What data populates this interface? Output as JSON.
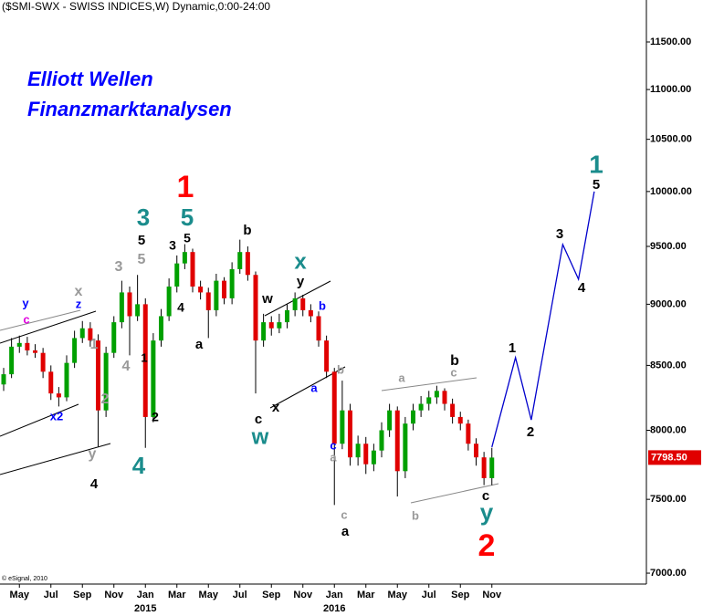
{
  "chart_data": {
    "type": "candlestick",
    "title": "($SMI-SWX - SWISS INDICES,W) Dynamic,0:00-24:00",
    "subtitle_lines": [
      "Elliott Wellen",
      "Finanzmarktanalysen"
    ],
    "credit": "© eSignal, 2010",
    "log_scale": true,
    "grid": false,
    "up_color": "#00a000",
    "down_color": "#e00000",
    "wick_color": "#000000",
    "categories": [
      null,
      null,
      "May",
      null,
      null,
      null,
      "Jul",
      null,
      null,
      null,
      "Sep",
      null,
      null,
      null,
      "Nov",
      null,
      null,
      null,
      "Jan\n2015",
      null,
      null,
      null,
      "Mar",
      null,
      null,
      null,
      "May",
      null,
      null,
      null,
      "Jul",
      null,
      null,
      null,
      "Sep",
      null,
      null,
      null,
      "Nov",
      null,
      null,
      null,
      "Jan\n2016",
      null,
      null,
      null,
      "Mar",
      null,
      null,
      null,
      "May",
      null,
      null,
      null,
      "Jul",
      null,
      null,
      null,
      "Sep",
      null,
      null,
      null,
      "Nov",
      null,
      null,
      null,
      null,
      null,
      null,
      null,
      null,
      null,
      null,
      null,
      null,
      null,
      null
    ],
    "candles": {
      "open": [
        8350,
        8430,
        8650,
        8680,
        8620,
        8600,
        8450,
        8280,
        8250,
        8520,
        8720,
        8800,
        8700,
        8150,
        8600,
        8850,
        9100,
        8900,
        9000,
        8100,
        8700,
        8900,
        9150,
        9350,
        9450,
        9150,
        9100,
        8950,
        9200,
        9050,
        9300,
        9450,
        9250,
        8700,
        8850,
        8800,
        8850,
        8950,
        9050,
        8950,
        8900,
        8700,
        8450,
        7900,
        8150,
        7800,
        7900,
        7750,
        7850,
        8000,
        8150,
        7700,
        8050,
        8150,
        8200,
        8250,
        8300,
        8200,
        8100,
        8050,
        7900,
        7800,
        7650,
        null,
        null,
        null,
        null,
        null,
        null,
        null,
        null,
        null,
        null,
        null,
        null,
        null,
        null
      ],
      "high": [
        8480,
        8720,
        8740,
        8730,
        8670,
        8640,
        8500,
        8330,
        8580,
        8780,
        8860,
        8850,
        8750,
        8650,
        8900,
        9200,
        9150,
        9250,
        9050,
        8760,
        8960,
        9220,
        9420,
        9520,
        9480,
        9200,
        9140,
        9260,
        9230,
        9360,
        9560,
        9500,
        9280,
        8920,
        8900,
        8920,
        9000,
        9100,
        9080,
        9000,
        8940,
        8740,
        8480,
        8380,
        8200,
        7960,
        7950,
        7900,
        8060,
        8200,
        8180,
        8100,
        8200,
        8260,
        8300,
        8340,
        8320,
        8240,
        8140,
        8080,
        7940,
        7840,
        7870,
        null,
        null,
        null,
        null,
        null,
        null,
        null,
        null,
        null,
        null,
        null,
        null,
        null,
        null
      ],
      "low": [
        8300,
        8400,
        8600,
        8580,
        8560,
        8400,
        8230,
        8180,
        8220,
        8480,
        8680,
        8650,
        7880,
        8100,
        8560,
        8800,
        8580,
        8860,
        7870,
        8060,
        8650,
        8860,
        9100,
        9300,
        9100,
        9040,
        8720,
        8900,
        9000,
        9000,
        9260,
        9200,
        8280,
        8650,
        8740,
        8760,
        8800,
        8900,
        8900,
        8850,
        8650,
        8400,
        7460,
        7860,
        7740,
        7740,
        7680,
        7700,
        7800,
        7950,
        7520,
        7650,
        8000,
        8100,
        8150,
        8200,
        8150,
        8050,
        8000,
        7850,
        7740,
        7600,
        7600,
        null,
        null,
        null,
        null,
        null,
        null,
        null,
        null,
        null,
        null,
        null,
        null,
        null,
        null
      ],
      "close": [
        8430,
        8650,
        8680,
        8620,
        8600,
        8450,
        8280,
        8250,
        8520,
        8720,
        8800,
        8700,
        8150,
        8600,
        8850,
        9100,
        8900,
        9000,
        8100,
        8700,
        8900,
        9150,
        9350,
        9450,
        9150,
        9100,
        8950,
        9200,
        9050,
        9300,
        9450,
        9250,
        8700,
        8850,
        8800,
        8850,
        8950,
        9050,
        8950,
        8900,
        8700,
        8450,
        7900,
        8150,
        7800,
        7900,
        7750,
        7850,
        8000,
        8150,
        7700,
        8050,
        8150,
        8200,
        8250,
        8300,
        8200,
        8100,
        8050,
        7900,
        7800,
        7650,
        7798.5,
        null,
        null,
        null,
        null,
        null,
        null,
        null,
        null,
        null,
        null,
        null,
        null,
        null,
        null
      ],
      "last_value_label": "7798.50",
      "last_label_color": "#e00000"
    },
    "projection": {
      "color": "#0000cc",
      "values": [
        null,
        null,
        null,
        null,
        null,
        null,
        null,
        null,
        null,
        null,
        null,
        null,
        null,
        null,
        null,
        null,
        null,
        null,
        null,
        null,
        null,
        null,
        null,
        null,
        null,
        null,
        null,
        null,
        null,
        null,
        null,
        null,
        null,
        null,
        null,
        null,
        null,
        null,
        null,
        null,
        null,
        null,
        null,
        null,
        null,
        null,
        null,
        null,
        null,
        null,
        null,
        null,
        null,
        null,
        null,
        null,
        null,
        null,
        null,
        null,
        null,
        null,
        7875,
        8098,
        8326,
        8562,
        8317,
        8078,
        8417,
        8769,
        9135,
        9517,
        9364,
        9213,
        9598,
        10000,
        null
      ]
    },
    "ylim": [
      6929,
      11960
    ],
    "yticks": [
      {
        "value": 7000,
        "label": "7000.00"
      },
      {
        "value": 7500,
        "label": "7500.00"
      },
      {
        "value": 8000,
        "label": "8000.00"
      },
      {
        "value": 8500,
        "label": "8500.00"
      },
      {
        "value": 9000,
        "label": "9000.00"
      },
      {
        "value": 9500,
        "label": "9500.00"
      },
      {
        "value": 10000,
        "label": "10000.00"
      },
      {
        "value": 10500,
        "label": "10500.00"
      },
      {
        "value": 11000,
        "label": "11000.00"
      },
      {
        "value": 11500,
        "label": "11500.00"
      }
    ],
    "annotations": [
      {
        "text": "1",
        "color": "#ff0000"
      },
      {
        "text": "2",
        "color": "#ff0000"
      },
      {
        "text": "3",
        "color": "#1a8c8c"
      },
      {
        "text": "5",
        "color": "#1a8c8c"
      },
      {
        "text": "4",
        "color": "#1a8c8c"
      },
      {
        "text": "1",
        "color": "#1a8c8c"
      },
      {
        "text": "x",
        "color": "#1a8c8c"
      },
      {
        "text": "w",
        "color": "#1a8c8c"
      },
      {
        "text": "y",
        "color": "#1a8c8c"
      },
      {
        "text": "5",
        "color": "#000000"
      },
      {
        "text": "3",
        "color": "#000000"
      },
      {
        "text": "5",
        "color": "#000000"
      },
      {
        "text": "b",
        "color": "#000000"
      },
      {
        "text": "4",
        "color": "#000000"
      },
      {
        "text": "a",
        "color": "#000000"
      },
      {
        "text": "w",
        "color": "#000000"
      },
      {
        "text": "y",
        "color": "#000000"
      },
      {
        "text": "c",
        "color": "#000000"
      },
      {
        "text": "x",
        "color": "#000000"
      },
      {
        "text": "a",
        "color": "#000000"
      },
      {
        "text": "b",
        "color": "#000000"
      },
      {
        "text": "c",
        "color": "#000000"
      },
      {
        "text": "4",
        "color": "#000000"
      },
      {
        "text": "2",
        "color": "#000000"
      },
      {
        "text": "1",
        "color": "#000000"
      },
      {
        "text": "1",
        "color": "#000000"
      },
      {
        "text": "2",
        "color": "#000000"
      },
      {
        "text": "3",
        "color": "#000000"
      },
      {
        "text": "4",
        "color": "#000000"
      },
      {
        "text": "5",
        "color": "#000000"
      },
      {
        "text": "3",
        "color": "#999999"
      },
      {
        "text": "5",
        "color": "#999999"
      },
      {
        "text": "4",
        "color": "#999999"
      },
      {
        "text": "2",
        "color": "#999999"
      },
      {
        "text": "1",
        "color": "#999999"
      },
      {
        "text": "x",
        "color": "#999999"
      },
      {
        "text": "y",
        "color": "#999999"
      },
      {
        "text": "b",
        "color": "#999999"
      },
      {
        "text": "a",
        "color": "#999999"
      },
      {
        "text": "c",
        "color": "#999999"
      },
      {
        "text": "a",
        "color": "#999999"
      },
      {
        "text": "c",
        "color": "#999999"
      },
      {
        "text": "b",
        "color": "#999999"
      },
      {
        "text": "y",
        "color": "#0000ff"
      },
      {
        "text": "z",
        "color": "#0000ff"
      },
      {
        "text": "b",
        "color": "#0000ff"
      },
      {
        "text": "a",
        "color": "#0000ff"
      },
      {
        "text": "c",
        "color": "#0000ff"
      },
      {
        "text": "x2",
        "color": "#0000ff"
      },
      {
        "text": "c",
        "color": "#e000e0"
      }
    ]
  }
}
